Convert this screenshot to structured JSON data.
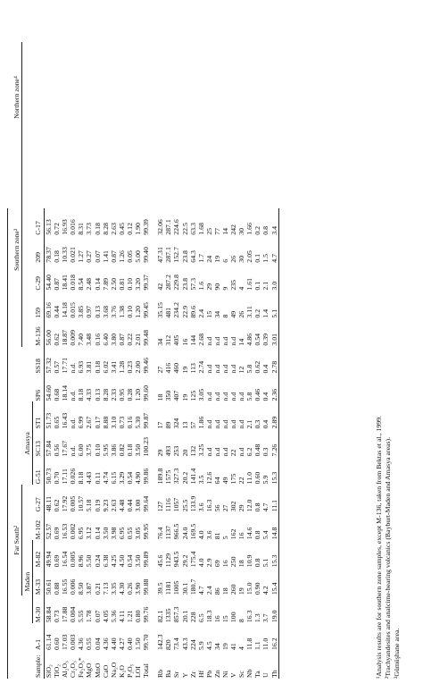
{
  "table": {
    "header_label": "Sample:",
    "groups_l1": [
      {
        "label": "Far South²",
        "span": 4,
        "start": 2
      },
      {
        "label": "Southern zone³",
        "span": 7,
        "start": 11
      },
      {
        "label": "Northern zone⁴",
        "span": 4,
        "start": 17
      }
    ],
    "groups_l2": [
      {
        "label": "Maden",
        "span": 3,
        "start": 1
      },
      {
        "label": "Amasya",
        "span": 3,
        "start": 6
      }
    ],
    "samples": [
      "A-1",
      "M-30",
      "M-33",
      "M-82",
      "M-102",
      "G-27",
      "G-51",
      "SC13",
      "ST1",
      "SP6",
      "SS18",
      "M-136",
      "159",
      "C-29",
      "209",
      "C-17"
    ],
    "rows_major": [
      {
        "label": "SiO₂",
        "values": [
          "61.14",
          "58.84",
          "50.61",
          "49.94",
          "52.57",
          "48.11",
          "50.73",
          "57.84",
          "51.73",
          "54.60",
          "57.32",
          "56.00",
          "69.16",
          "54.40",
          "78.37",
          "56.13"
        ]
      },
      {
        "label": "TiO₂",
        "values": [
          "0.60",
          "0.73",
          "0.88",
          "0.69",
          "0.69",
          "0.62",
          "0.70",
          "0.56",
          "0.65",
          "0.68",
          "0.57",
          "0.62",
          "0.44",
          "0.87",
          "0.18",
          "0.72"
        ]
      },
      {
        "label": "Al₂O₃",
        "values": [
          "17.03",
          "17.88",
          "16.55",
          "16.54",
          "16.53",
          "17.92",
          "17.11",
          "17.67",
          "16.43",
          "18.14",
          "17.71",
          "18.87",
          "14.18",
          "18.41",
          "10.33",
          "16.93"
        ]
      },
      {
        "label": "Cr₂O₃",
        "values": [
          "0.003",
          "0.004",
          "0.006",
          "0.005",
          "0.002",
          "0.005",
          "0.026",
          "n.d.",
          "n.d.",
          "n.d.",
          "n.d.",
          "0.009",
          "0.015",
          "0.018",
          "0.021",
          "0.016"
        ]
      },
      {
        "label": "Fe₂O₃*",
        "values": [
          "4.36",
          "5.55",
          "8.50",
          "8.96",
          "6.95",
          "10.57",
          "8.18",
          "6.00",
          "6.99",
          "8.18",
          "6.93",
          "7.40",
          "3.85",
          "8.54",
          "1.27",
          "8.31"
        ]
      },
      {
        "label": "MgO",
        "values": [
          "0.55",
          "1.78",
          "3.87",
          "5.50",
          "3.12",
          "5.18",
          "4.43",
          "3.75",
          "2.67",
          "4.33",
          "3.81",
          "3.48",
          "0.97",
          "2.48",
          "0.27",
          "3.73"
        ]
      },
      {
        "label": "MnO",
        "values": [
          "0.04",
          "0.07",
          "0.21",
          "0.24",
          "0.14",
          "0.19",
          "0.11",
          "0.10",
          "0.17",
          "0.13",
          "0.18",
          "0.16",
          "0.13",
          "0.14",
          "0.07",
          "0.18"
        ]
      },
      {
        "label": "CaO",
        "values": [
          "4.36",
          "4.05",
          "7.13",
          "6.38",
          "3.50",
          "9.23",
          "4.74",
          "5.95",
          "8.88",
          "8.28",
          "6.02",
          "6.40",
          "3.68",
          "7.89",
          "1.41",
          "8.28"
        ]
      },
      {
        "label": "Na₂O",
        "values": [
          "4.40",
          "5.36",
          "3.35",
          "4.25",
          "3.98",
          "2.63",
          "6.15",
          "3.86",
          "3.10",
          "2.33",
          "3.41",
          "3.80",
          "3.76",
          "2.50",
          "0.87",
          "2.63"
        ]
      },
      {
        "label": "K₂O",
        "values": [
          "4.27",
          "4.11",
          "4.30",
          "4.50",
          "6.95",
          "4.48",
          "3.29",
          "0.82",
          "0.73",
          "0.95",
          "1.28",
          "0.87",
          "1.38",
          "0.81",
          "1.26",
          "0.45"
        ]
      },
      {
        "label": "P₂O₅",
        "values": [
          "0.40",
          "1.21",
          "0.26",
          "0.54",
          "0.55",
          "0.44",
          "0.54",
          "0.18",
          "0.16",
          "0.28",
          "0.23",
          "0.22",
          "0.10",
          "0.10",
          "0.05",
          "0.12"
        ]
      },
      {
        "label": "LOI",
        "values": [
          "1.50",
          "0.80",
          "3.90",
          "3.50",
          "3.05",
          "3.00",
          "4.90",
          "3.50",
          "5.30",
          "1.20",
          "2.00",
          "2.01",
          "1.20",
          "3.20",
          "5.00",
          "1.90"
        ]
      },
      {
        "label": "Total",
        "values": [
          "99.70",
          "99.76",
          "99.88",
          "99.89",
          "99.95",
          "99.64",
          "99.86",
          "100.23",
          "99.87",
          "99.60",
          "99.46",
          "99.48",
          "99.45",
          "99.37",
          "99.40",
          "99.39"
        ]
      }
    ],
    "rows_trace": [
      {
        "label": "Rb",
        "values": [
          "142.3",
          "82.1",
          "39.5",
          "45.6",
          "76.4",
          "127",
          "189.8",
          "29",
          "17",
          "18",
          "27",
          "34",
          "35.15",
          "42",
          "47.31",
          "32.06"
        ]
      },
      {
        "label": "Ba",
        "values": [
          "820",
          "1335",
          "1181",
          "1129",
          "1137",
          "1116",
          "1575",
          "493",
          "89",
          "350",
          "416",
          "312",
          "481",
          "287.2",
          "287.1",
          "287.1"
        ]
      },
      {
        "label": "Sr",
        "values": [
          "73.4",
          "857.3",
          "1005",
          "943.5",
          "966.5",
          "1057",
          "327.3",
          "253",
          "324",
          "407",
          "460",
          "405",
          "234.2",
          "229.8",
          "152.7",
          "224.6"
        ]
      },
      {
        "label": "Y",
        "values": [
          "43.3",
          "20.1",
          "30.1",
          "29.2",
          "24.0",
          "25.5",
          "20.2",
          "20",
          "13",
          "19",
          "19",
          "16",
          "22.9",
          "23.8",
          "23.8",
          "22.5"
        ]
      },
      {
        "label": "Zr",
        "values": [
          "224",
          "228",
          "180.7",
          "175.4",
          "169.5",
          "133.9",
          "141.4",
          "132",
          "57",
          "125",
          "113",
          "144",
          "89.6",
          "57.3",
          "64.3",
          "63.3"
        ]
      },
      {
        "label": "Hf",
        "values": [
          "5.9",
          "6.5",
          "4.7",
          "4.0",
          "4.0",
          "3.6",
          "3.5",
          "3.25",
          "1.86",
          "3.05",
          "2.74",
          "2.68",
          "2.4",
          "1.6",
          "1.7",
          "1.68"
        ]
      },
      {
        "label": "Pb",
        "values": [
          "4.5",
          "18.3",
          "2.4",
          "2.9",
          "3.6",
          "16.3",
          "12.6",
          "n.d",
          "n.d",
          "n.d",
          "n.d",
          "n.d",
          "15",
          "29",
          "24",
          "25"
        ]
      },
      {
        "label": "Zn",
        "values": [
          "34",
          "16",
          "86",
          "69",
          "81",
          "56",
          "64",
          "n.d",
          "n.d",
          "n.d",
          "n.d",
          "n.d",
          "34",
          "90",
          "19",
          "77"
        ]
      },
      {
        "label": "Ni",
        "values": [
          "19",
          "15",
          "18",
          "16",
          "5",
          "27",
          "49",
          "n.d",
          "n.d",
          "n.d",
          "n.d",
          "n.d",
          "8",
          "9",
          "6",
          "14"
        ]
      },
      {
        "label": "V",
        "values": [
          "41",
          "100",
          "260",
          "250",
          "162",
          "302",
          "175",
          "22",
          "n.d",
          "n.d",
          "n.d",
          "n.d",
          "49",
          "235",
          "26",
          "242"
        ]
      },
      {
        "label": "Sc",
        "values": [
          "4",
          "8",
          "19",
          "18",
          "16",
          "29",
          "22",
          "n.d",
          "n.d",
          "n.d",
          "12",
          "14",
          "26",
          "4",
          "30",
          "30"
        ]
      },
      {
        "label": "Nb",
        "values": [
          "11.8",
          "16.3",
          "15.0",
          "10.9",
          "14.6",
          "12.0",
          "11.0",
          "6.2",
          "2.1",
          "5.8",
          "5.8",
          "4.86",
          "3.11",
          "1.61",
          "2.05",
          "1.66"
        ]
      },
      {
        "label": "Ta",
        "values": [
          "1.1",
          "1.3",
          "0.90",
          "0.8",
          "0.8",
          "0.8",
          "0.60",
          "0.48",
          "0.3",
          "0.46",
          "0.62",
          "0.54",
          "0.2",
          "0.1",
          "0.1",
          "0.2"
        ]
      },
      {
        "label": "U",
        "values": [
          "11.0",
          "3.7",
          "4.2",
          "5.1",
          "5.4",
          "4.7",
          "5.9",
          "0.3",
          "0.4",
          "0.4",
          "0.4",
          "0.39",
          "1.4",
          "2.1",
          "1.5",
          "0.8"
        ]
      },
      {
        "label": "Th",
        "values": [
          "16.2",
          "19.0",
          "15.4",
          "15.3",
          "14.8",
          "11.1",
          "15.3",
          "7.26",
          "2.89",
          "2.36",
          "2.78",
          "3.01",
          "5.1",
          "3.0",
          "4.7",
          "3.4"
        ]
      }
    ]
  },
  "footnotes": [
    "¹Analysis results are for southern zone samples, except M-136, taken from Bektas et al., 1999.",
    "²Trachyandesites and analcime-bearing volcanics (Bayburt-Maden and Amasya areas).",
    "³Gümüşhane area."
  ]
}
